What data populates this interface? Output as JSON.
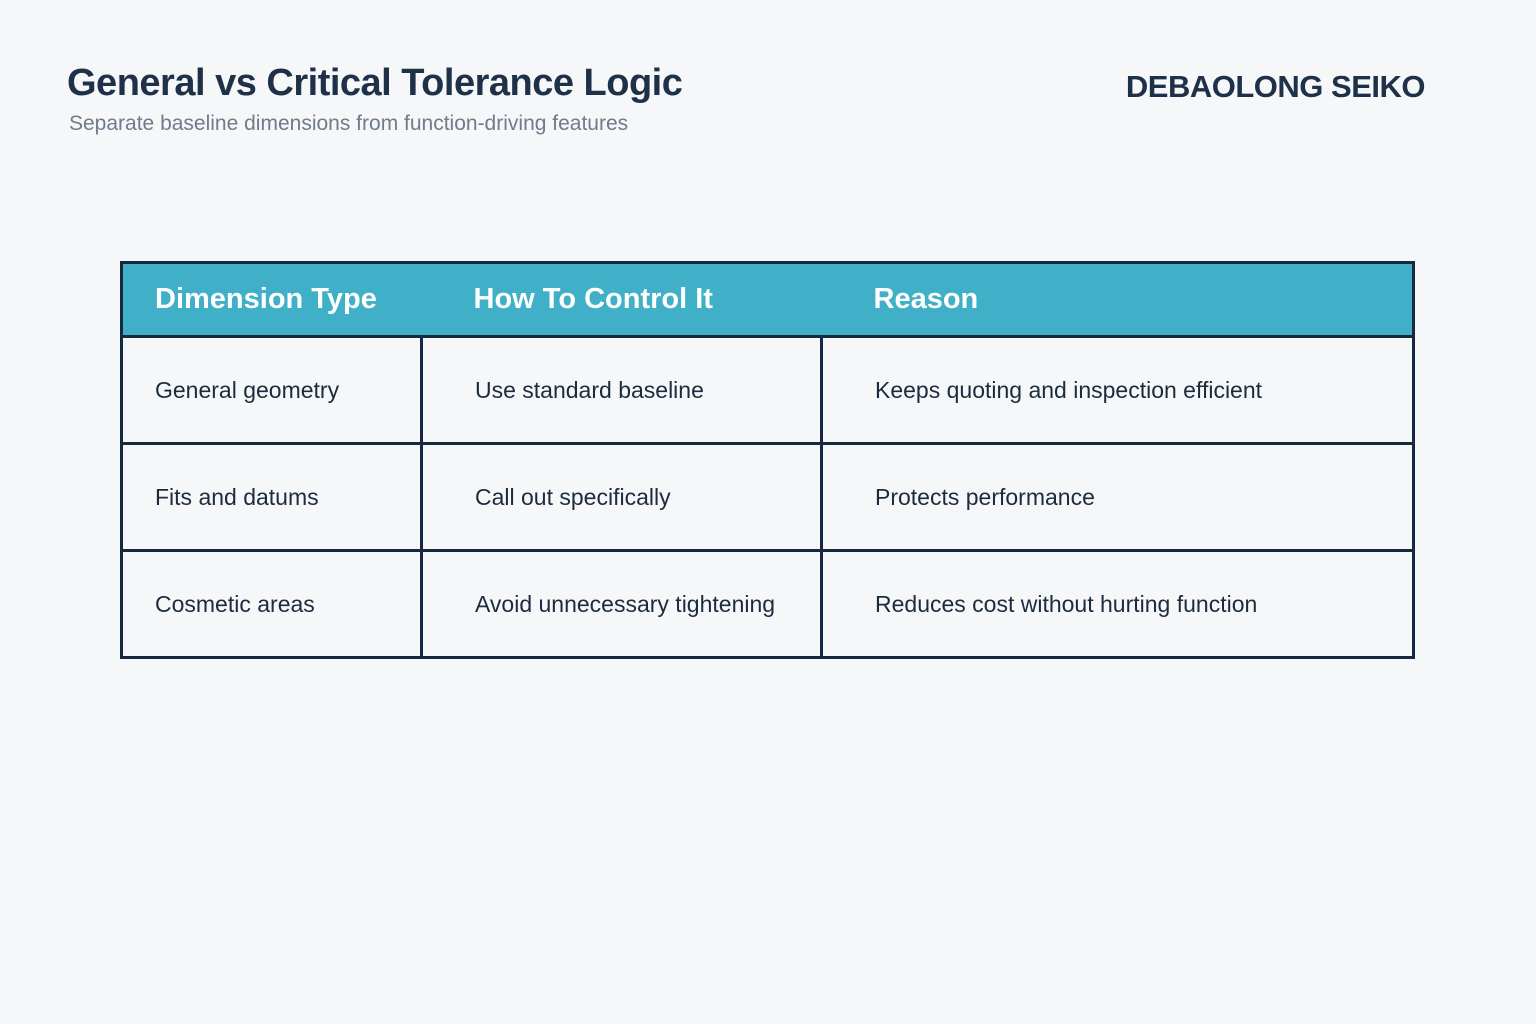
{
  "page": {
    "title": "General vs Critical Tolerance Logic",
    "subtitle": "Separate baseline dimensions from function-driving features",
    "brand": "DEBAOLONG SEIKO"
  },
  "table": {
    "columns": [
      "Dimension Type",
      "How To Control It",
      "Reason"
    ],
    "rows": [
      [
        "General geometry",
        "Use standard baseline",
        "Keeps quoting and inspection efficient"
      ],
      [
        "Fits and datums",
        "Call out specifically",
        "Protects performance"
      ],
      [
        "Cosmetic areas",
        "Avoid unnecessary tightening",
        "Reduces cost without hurting function"
      ]
    ]
  },
  "colors": {
    "background": "#f6f7f9",
    "header_teal": "#3fb0c8",
    "border_navy": "#16293f",
    "title_text": "#1e3148",
    "subtitle_text": "#6f7c8a",
    "cell_text": "#1c2b3d",
    "header_text": "#ffffff"
  }
}
